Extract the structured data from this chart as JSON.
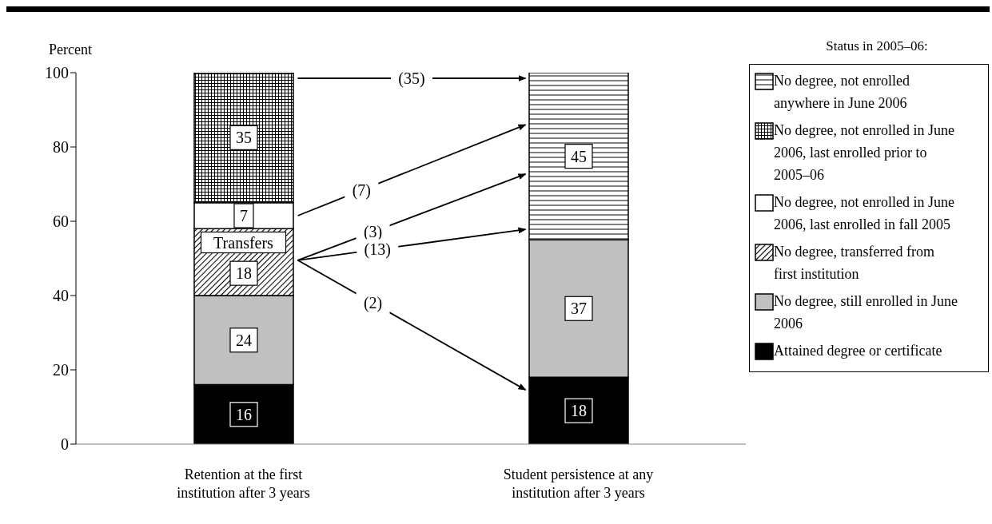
{
  "chart_data": {
    "type": "bar",
    "stacked": true,
    "ylabel": "Percent",
    "legend_title": "Status in 2005–06:",
    "legend": "right",
    "grid": false,
    "data_labels": true,
    "categories": [
      "Retention at the first institution after 3 years",
      "Student persistence at any institution after 3 years"
    ],
    "ylim": [
      0,
      100
    ],
    "yticks": [
      0,
      20,
      40,
      60,
      80,
      100
    ],
    "series": [
      {
        "name": "Attained degree or certificate",
        "color": "#000000",
        "values": [
          16,
          18
        ]
      },
      {
        "name": "No degree, still enrolled in June 2006",
        "color": "#c0c0c0",
        "values": [
          24,
          37
        ]
      },
      {
        "name": "No degree, transferred from first institution",
        "color": "#000000",
        "values": [
          18,
          null
        ]
      },
      {
        "name": "No degree, not enrolled in June 2006, last enrolled in fall 2005",
        "color": "#ffffff",
        "values": [
          7,
          null
        ]
      },
      {
        "name": "No degree, not enrolled in June 2006, last enrolled prior to 2005–06",
        "color": "#000000",
        "values": [
          35,
          null
        ]
      },
      {
        "name": "No degree, not enrolled anywhere in June 2006",
        "color": "#000000",
        "values": [
          null,
          45
        ]
      }
    ],
    "annotations": [
      "(35)",
      "(7)",
      "(3)",
      "(13)",
      "(2)",
      "Transfers"
    ]
  }
}
